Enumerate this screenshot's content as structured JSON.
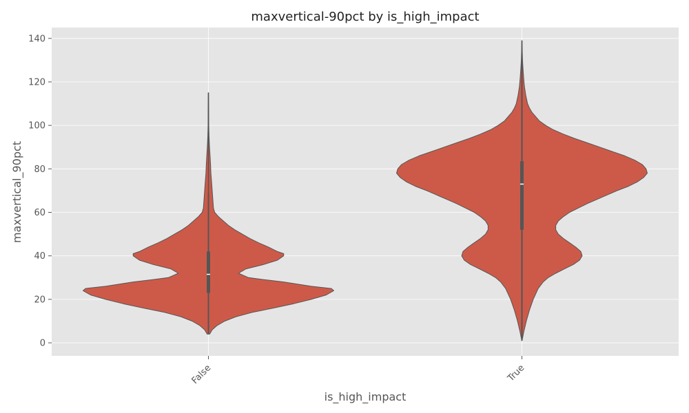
{
  "chart_data": {
    "type": "violin",
    "title": "maxvertical-90pct by is_high_impact",
    "xlabel": "is_high_impact",
    "ylabel": "maxvertical_90pct",
    "categories": [
      "False",
      "True"
    ],
    "ylim": [
      -6,
      145
    ],
    "yticks": [
      0,
      20,
      40,
      60,
      80,
      100,
      120,
      140
    ],
    "grid": true,
    "colors": {
      "background": "#e5e5e5",
      "grid": "#ffffff",
      "violin_fill": "#cd5a49",
      "violin_edge": "#555555",
      "box": "#555555",
      "median": "#ffffff"
    },
    "violins": [
      {
        "category": "False",
        "min": 4,
        "max": 115,
        "q1": 23,
        "median": 31.5,
        "q3": 42,
        "whisker_low": 4,
        "whisker_high": 69,
        "density": [
          [
            4,
            0.01
          ],
          [
            6,
            0.03
          ],
          [
            8,
            0.07
          ],
          [
            10,
            0.13
          ],
          [
            12,
            0.22
          ],
          [
            14,
            0.35
          ],
          [
            16,
            0.52
          ],
          [
            18,
            0.68
          ],
          [
            20,
            0.82
          ],
          [
            22,
            0.94
          ],
          [
            24,
            1.0
          ],
          [
            25,
            0.98
          ],
          [
            26,
            0.82
          ],
          [
            28,
            0.6
          ],
          [
            29,
            0.45
          ],
          [
            30,
            0.32
          ],
          [
            32,
            0.24
          ],
          [
            34,
            0.3
          ],
          [
            36,
            0.44
          ],
          [
            38,
            0.55
          ],
          [
            40,
            0.6
          ],
          [
            41,
            0.6
          ],
          [
            42,
            0.55
          ],
          [
            44,
            0.48
          ],
          [
            46,
            0.4
          ],
          [
            48,
            0.33
          ],
          [
            50,
            0.27
          ],
          [
            52,
            0.21
          ],
          [
            54,
            0.16
          ],
          [
            56,
            0.12
          ],
          [
            58,
            0.08
          ],
          [
            60,
            0.05
          ],
          [
            62,
            0.04
          ],
          [
            66,
            0.035
          ],
          [
            70,
            0.03
          ],
          [
            74,
            0.025
          ],
          [
            78,
            0.02
          ],
          [
            82,
            0.017
          ],
          [
            86,
            0.013
          ],
          [
            90,
            0.009
          ],
          [
            95,
            0.005
          ],
          [
            100,
            0.003
          ],
          [
            108,
            0.002
          ],
          [
            115,
            0.001
          ]
        ]
      },
      {
        "category": "True",
        "min": 1,
        "max": 139,
        "q1": 52,
        "median": 73,
        "q3": 83.5,
        "whisker_low": 1,
        "whisker_high": 128,
        "density": [
          [
            1,
            0.001
          ],
          [
            5,
            0.015
          ],
          [
            10,
            0.035
          ],
          [
            15,
            0.06
          ],
          [
            20,
            0.09
          ],
          [
            25,
            0.13
          ],
          [
            28,
            0.17
          ],
          [
            30,
            0.21
          ],
          [
            32,
            0.27
          ],
          [
            34,
            0.34
          ],
          [
            36,
            0.41
          ],
          [
            38,
            0.46
          ],
          [
            40,
            0.48
          ],
          [
            42,
            0.47
          ],
          [
            44,
            0.43
          ],
          [
            46,
            0.38
          ],
          [
            48,
            0.33
          ],
          [
            50,
            0.29
          ],
          [
            52,
            0.27
          ],
          [
            54,
            0.27
          ],
          [
            56,
            0.29
          ],
          [
            58,
            0.33
          ],
          [
            60,
            0.38
          ],
          [
            62,
            0.45
          ],
          [
            64,
            0.52
          ],
          [
            66,
            0.6
          ],
          [
            68,
            0.68
          ],
          [
            70,
            0.76
          ],
          [
            72,
            0.85
          ],
          [
            74,
            0.92
          ],
          [
            76,
            0.97
          ],
          [
            78,
            1.0
          ],
          [
            80,
            0.99
          ],
          [
            82,
            0.96
          ],
          [
            84,
            0.9
          ],
          [
            86,
            0.82
          ],
          [
            88,
            0.72
          ],
          [
            90,
            0.62
          ],
          [
            92,
            0.52
          ],
          [
            94,
            0.42
          ],
          [
            96,
            0.33
          ],
          [
            98,
            0.25
          ],
          [
            100,
            0.19
          ],
          [
            102,
            0.14
          ],
          [
            104,
            0.11
          ],
          [
            106,
            0.08
          ],
          [
            108,
            0.06
          ],
          [
            110,
            0.045
          ],
          [
            114,
            0.03
          ],
          [
            118,
            0.02
          ],
          [
            122,
            0.014
          ],
          [
            126,
            0.009
          ],
          [
            130,
            0.005
          ],
          [
            134,
            0.003
          ],
          [
            139,
            0.001
          ]
        ]
      }
    ]
  }
}
